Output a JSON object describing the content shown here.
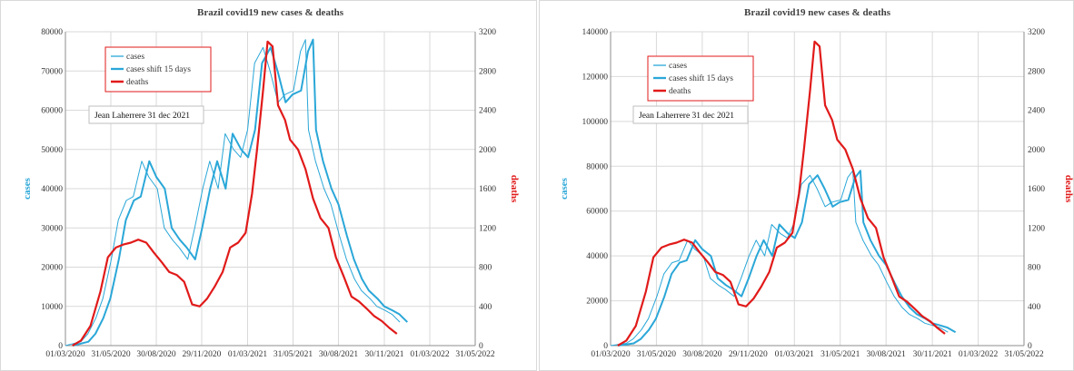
{
  "colors": {
    "cases": "#2aa7d8",
    "deaths": "#e11a1a",
    "grid": "#d9d9d9",
    "axis": "#8c8c8c",
    "legend_border": "#e11a1a"
  },
  "chart_data": [
    {
      "type": "line",
      "title": "Brazil covid19 new cases & deaths",
      "ylabel_left": "cases",
      "ylabel_right": "deaths",
      "author_note": "Jean Laherrere 31 dec 2021",
      "legend": {
        "placement": "top-left",
        "entries": [
          "cases",
          "cases shift 15 days",
          "deaths"
        ]
      },
      "x_ticks": [
        "01/03/2020",
        "31/05/2020",
        "30/08/2020",
        "29/11/2020",
        "01/03/2021",
        "31/05/2021",
        "30/08/2021",
        "30/11/2021",
        "01/03/2022",
        "31/05/2022"
      ],
      "ylim_left": [
        0,
        80000
      ],
      "y_ticks_left": [
        0,
        10000,
        20000,
        30000,
        40000,
        50000,
        60000,
        70000,
        80000
      ],
      "ylim_right": [
        0,
        3200
      ],
      "y_ticks_right": [
        0,
        400,
        800,
        1200,
        1600,
        2000,
        2400,
        2800,
        3200
      ],
      "grid": true,
      "series": [
        {
          "name": "cases",
          "axis": "left",
          "x": [
            "2020-03-01",
            "2020-04-01",
            "2020-04-15",
            "2020-05-01",
            "2020-05-15",
            "2020-06-01",
            "2020-06-15",
            "2020-07-01",
            "2020-07-15",
            "2020-08-01",
            "2020-08-15",
            "2020-09-01",
            "2020-09-15",
            "2020-10-01",
            "2020-10-15",
            "2020-11-01",
            "2020-11-15",
            "2020-12-01",
            "2020-12-15",
            "2021-01-01",
            "2021-01-15",
            "2021-02-01",
            "2021-02-15",
            "2021-03-01",
            "2021-03-15",
            "2021-04-01",
            "2021-04-15",
            "2021-05-01",
            "2021-05-15",
            "2021-06-01",
            "2021-06-15",
            "2021-06-25",
            "2021-07-01",
            "2021-07-15",
            "2021-08-01",
            "2021-08-15",
            "2021-09-01",
            "2021-09-15",
            "2021-10-01",
            "2021-10-15",
            "2021-11-01",
            "2021-11-15",
            "2021-12-01",
            "2021-12-15",
            "2021-12-31"
          ],
          "values": [
            0,
            1000,
            3000,
            7000,
            12000,
            22000,
            32000,
            37000,
            38000,
            47000,
            43000,
            40000,
            30000,
            27000,
            25000,
            22000,
            30000,
            40000,
            47000,
            40000,
            54000,
            50000,
            48000,
            55000,
            72000,
            76000,
            70000,
            62000,
            64000,
            65000,
            75000,
            78000,
            55000,
            47000,
            40000,
            36000,
            28000,
            22000,
            17000,
            14000,
            12000,
            10000,
            9000,
            8000,
            6000
          ]
        },
        {
          "name": "cases shift 15 days",
          "axis": "left",
          "x": [
            "2020-03-16",
            "2020-04-16",
            "2020-04-30",
            "2020-05-16",
            "2020-05-30",
            "2020-06-16",
            "2020-06-30",
            "2020-07-16",
            "2020-07-30",
            "2020-08-16",
            "2020-08-30",
            "2020-09-16",
            "2020-09-30",
            "2020-10-16",
            "2020-10-30",
            "2020-11-16",
            "2020-11-30",
            "2020-12-16",
            "2020-12-30",
            "2021-01-16",
            "2021-01-30",
            "2021-02-16",
            "2021-03-02",
            "2021-03-16",
            "2021-03-30",
            "2021-04-16",
            "2021-04-30",
            "2021-05-16",
            "2021-05-30",
            "2021-06-16",
            "2021-06-30",
            "2021-07-10",
            "2021-07-16",
            "2021-07-30",
            "2021-08-16",
            "2021-08-30",
            "2021-09-16",
            "2021-09-30",
            "2021-10-16",
            "2021-10-30",
            "2021-11-16",
            "2021-11-30",
            "2021-12-16",
            "2021-12-30",
            "2022-01-15"
          ],
          "values": [
            0,
            1000,
            3000,
            7000,
            12000,
            22000,
            32000,
            37000,
            38000,
            47000,
            43000,
            40000,
            30000,
            27000,
            25000,
            22000,
            30000,
            40000,
            47000,
            40000,
            54000,
            50000,
            48000,
            55000,
            72000,
            76000,
            70000,
            62000,
            64000,
            65000,
            75000,
            78000,
            55000,
            47000,
            40000,
            36000,
            28000,
            22000,
            17000,
            14000,
            12000,
            10000,
            9000,
            8000,
            6000
          ]
        },
        {
          "name": "deaths",
          "axis": "right",
          "x": [
            "2020-03-15",
            "2020-04-01",
            "2020-04-20",
            "2020-05-10",
            "2020-05-25",
            "2020-06-10",
            "2020-06-25",
            "2020-07-10",
            "2020-07-25",
            "2020-08-10",
            "2020-08-25",
            "2020-09-10",
            "2020-09-25",
            "2020-10-10",
            "2020-10-25",
            "2020-11-10",
            "2020-11-25",
            "2020-12-10",
            "2020-12-25",
            "2021-01-10",
            "2021-01-25",
            "2021-02-10",
            "2021-02-25",
            "2021-03-10",
            "2021-03-20",
            "2021-04-01",
            "2021-04-10",
            "2021-04-20",
            "2021-05-01",
            "2021-05-15",
            "2021-05-25",
            "2021-06-10",
            "2021-06-25",
            "2021-07-10",
            "2021-07-25",
            "2021-08-10",
            "2021-08-25",
            "2021-09-10",
            "2021-09-25",
            "2021-10-10",
            "2021-10-25",
            "2021-11-10",
            "2021-11-25",
            "2021-12-10",
            "2021-12-25"
          ],
          "values": [
            0,
            50,
            200,
            550,
            900,
            1000,
            1030,
            1050,
            1080,
            1050,
            950,
            850,
            750,
            720,
            650,
            420,
            400,
            480,
            600,
            750,
            1000,
            1050,
            1150,
            1550,
            2000,
            2600,
            3100,
            3050,
            2450,
            2300,
            2100,
            2000,
            1800,
            1500,
            1300,
            1200,
            900,
            700,
            500,
            450,
            380,
            300,
            250,
            180,
            120
          ]
        }
      ]
    },
    {
      "type": "line",
      "title": "Brazil covid19 new cases & deaths",
      "ylabel_left": "cases",
      "ylabel_right": "deaths",
      "author_note": "Jean Laherrere 31 dec 2021",
      "legend": {
        "placement": "top-left",
        "entries": [
          "cases",
          "cases shift 15 days",
          "deaths"
        ]
      },
      "x_ticks": [
        "01/03/2020",
        "31/05/2020",
        "30/08/2020",
        "29/11/2020",
        "01/03/2021",
        "31/05/2021",
        "30/08/2021",
        "30/11/2021",
        "01/03/2022",
        "31/05/2022"
      ],
      "ylim_left": [
        0,
        140000
      ],
      "y_ticks_left": [
        0,
        20000,
        40000,
        60000,
        80000,
        100000,
        120000,
        140000
      ],
      "ylim_right": [
        0,
        3200
      ],
      "y_ticks_right": [
        0,
        400,
        800,
        1200,
        1600,
        2000,
        2400,
        2800,
        3200
      ],
      "grid": true,
      "series": [
        {
          "name": "cases",
          "axis": "left",
          "x": [
            "2020-03-01",
            "2020-04-01",
            "2020-04-15",
            "2020-05-01",
            "2020-05-15",
            "2020-06-01",
            "2020-06-15",
            "2020-07-01",
            "2020-07-15",
            "2020-08-01",
            "2020-08-15",
            "2020-09-01",
            "2020-09-15",
            "2020-10-01",
            "2020-10-15",
            "2020-11-01",
            "2020-11-15",
            "2020-12-01",
            "2020-12-15",
            "2021-01-01",
            "2021-01-15",
            "2021-02-01",
            "2021-02-15",
            "2021-03-01",
            "2021-03-15",
            "2021-04-01",
            "2021-04-15",
            "2021-05-01",
            "2021-05-15",
            "2021-06-01",
            "2021-06-15",
            "2021-06-25",
            "2021-07-01",
            "2021-07-15",
            "2021-08-01",
            "2021-08-15",
            "2021-09-01",
            "2021-09-15",
            "2021-10-01",
            "2021-10-15",
            "2021-11-01",
            "2021-11-15",
            "2021-12-01",
            "2021-12-15",
            "2021-12-31"
          ],
          "values": [
            0,
            1000,
            3000,
            7000,
            12000,
            22000,
            32000,
            37000,
            38000,
            47000,
            43000,
            40000,
            30000,
            27000,
            25000,
            22000,
            30000,
            40000,
            47000,
            40000,
            54000,
            50000,
            48000,
            55000,
            72000,
            76000,
            70000,
            62000,
            64000,
            65000,
            75000,
            78000,
            55000,
            47000,
            40000,
            36000,
            28000,
            22000,
            17000,
            14000,
            12000,
            10000,
            9000,
            8000,
            6000
          ]
        },
        {
          "name": "cases shift 15 days",
          "axis": "left",
          "x": [
            "2020-03-16",
            "2020-04-16",
            "2020-04-30",
            "2020-05-16",
            "2020-05-30",
            "2020-06-16",
            "2020-06-30",
            "2020-07-16",
            "2020-07-30",
            "2020-08-16",
            "2020-08-30",
            "2020-09-16",
            "2020-09-30",
            "2020-10-16",
            "2020-10-30",
            "2020-11-16",
            "2020-11-30",
            "2020-12-16",
            "2020-12-30",
            "2021-01-16",
            "2021-01-30",
            "2021-02-16",
            "2021-03-02",
            "2021-03-16",
            "2021-03-30",
            "2021-04-16",
            "2021-04-30",
            "2021-05-16",
            "2021-05-30",
            "2021-06-16",
            "2021-06-30",
            "2021-07-10",
            "2021-07-16",
            "2021-07-30",
            "2021-08-16",
            "2021-08-30",
            "2021-09-16",
            "2021-09-30",
            "2021-10-16",
            "2021-10-30",
            "2021-11-16",
            "2021-11-30",
            "2021-12-16",
            "2021-12-30",
            "2022-01-15"
          ],
          "values": [
            0,
            1000,
            3000,
            7000,
            12000,
            22000,
            32000,
            37000,
            38000,
            47000,
            43000,
            40000,
            30000,
            27000,
            25000,
            22000,
            30000,
            40000,
            47000,
            40000,
            54000,
            50000,
            48000,
            55000,
            72000,
            76000,
            70000,
            62000,
            64000,
            65000,
            75000,
            78000,
            55000,
            47000,
            40000,
            36000,
            28000,
            22000,
            17000,
            14000,
            12000,
            10000,
            9000,
            8000,
            6000
          ]
        },
        {
          "name": "deaths",
          "axis": "right",
          "x": [
            "2020-03-15",
            "2020-04-01",
            "2020-04-20",
            "2020-05-10",
            "2020-05-25",
            "2020-06-10",
            "2020-06-25",
            "2020-07-10",
            "2020-07-25",
            "2020-08-10",
            "2020-08-25",
            "2020-09-10",
            "2020-09-25",
            "2020-10-10",
            "2020-10-25",
            "2020-11-10",
            "2020-11-25",
            "2020-12-10",
            "2020-12-25",
            "2021-01-10",
            "2021-01-25",
            "2021-02-10",
            "2021-02-25",
            "2021-03-10",
            "2021-03-20",
            "2021-04-01",
            "2021-04-10",
            "2021-04-20",
            "2021-05-01",
            "2021-05-15",
            "2021-05-25",
            "2021-06-10",
            "2021-06-25",
            "2021-07-10",
            "2021-07-25",
            "2021-08-10",
            "2021-08-25",
            "2021-09-10",
            "2021-09-25",
            "2021-10-10",
            "2021-10-25",
            "2021-11-10",
            "2021-11-25",
            "2021-12-10",
            "2021-12-25"
          ],
          "values": [
            0,
            50,
            200,
            550,
            900,
            1000,
            1030,
            1050,
            1080,
            1050,
            950,
            850,
            750,
            720,
            650,
            420,
            400,
            480,
            600,
            750,
            1000,
            1050,
            1150,
            1550,
            2000,
            2600,
            3100,
            3050,
            2450,
            2300,
            2100,
            2000,
            1800,
            1500,
            1300,
            1200,
            900,
            700,
            500,
            450,
            380,
            300,
            250,
            180,
            120
          ]
        }
      ]
    }
  ]
}
